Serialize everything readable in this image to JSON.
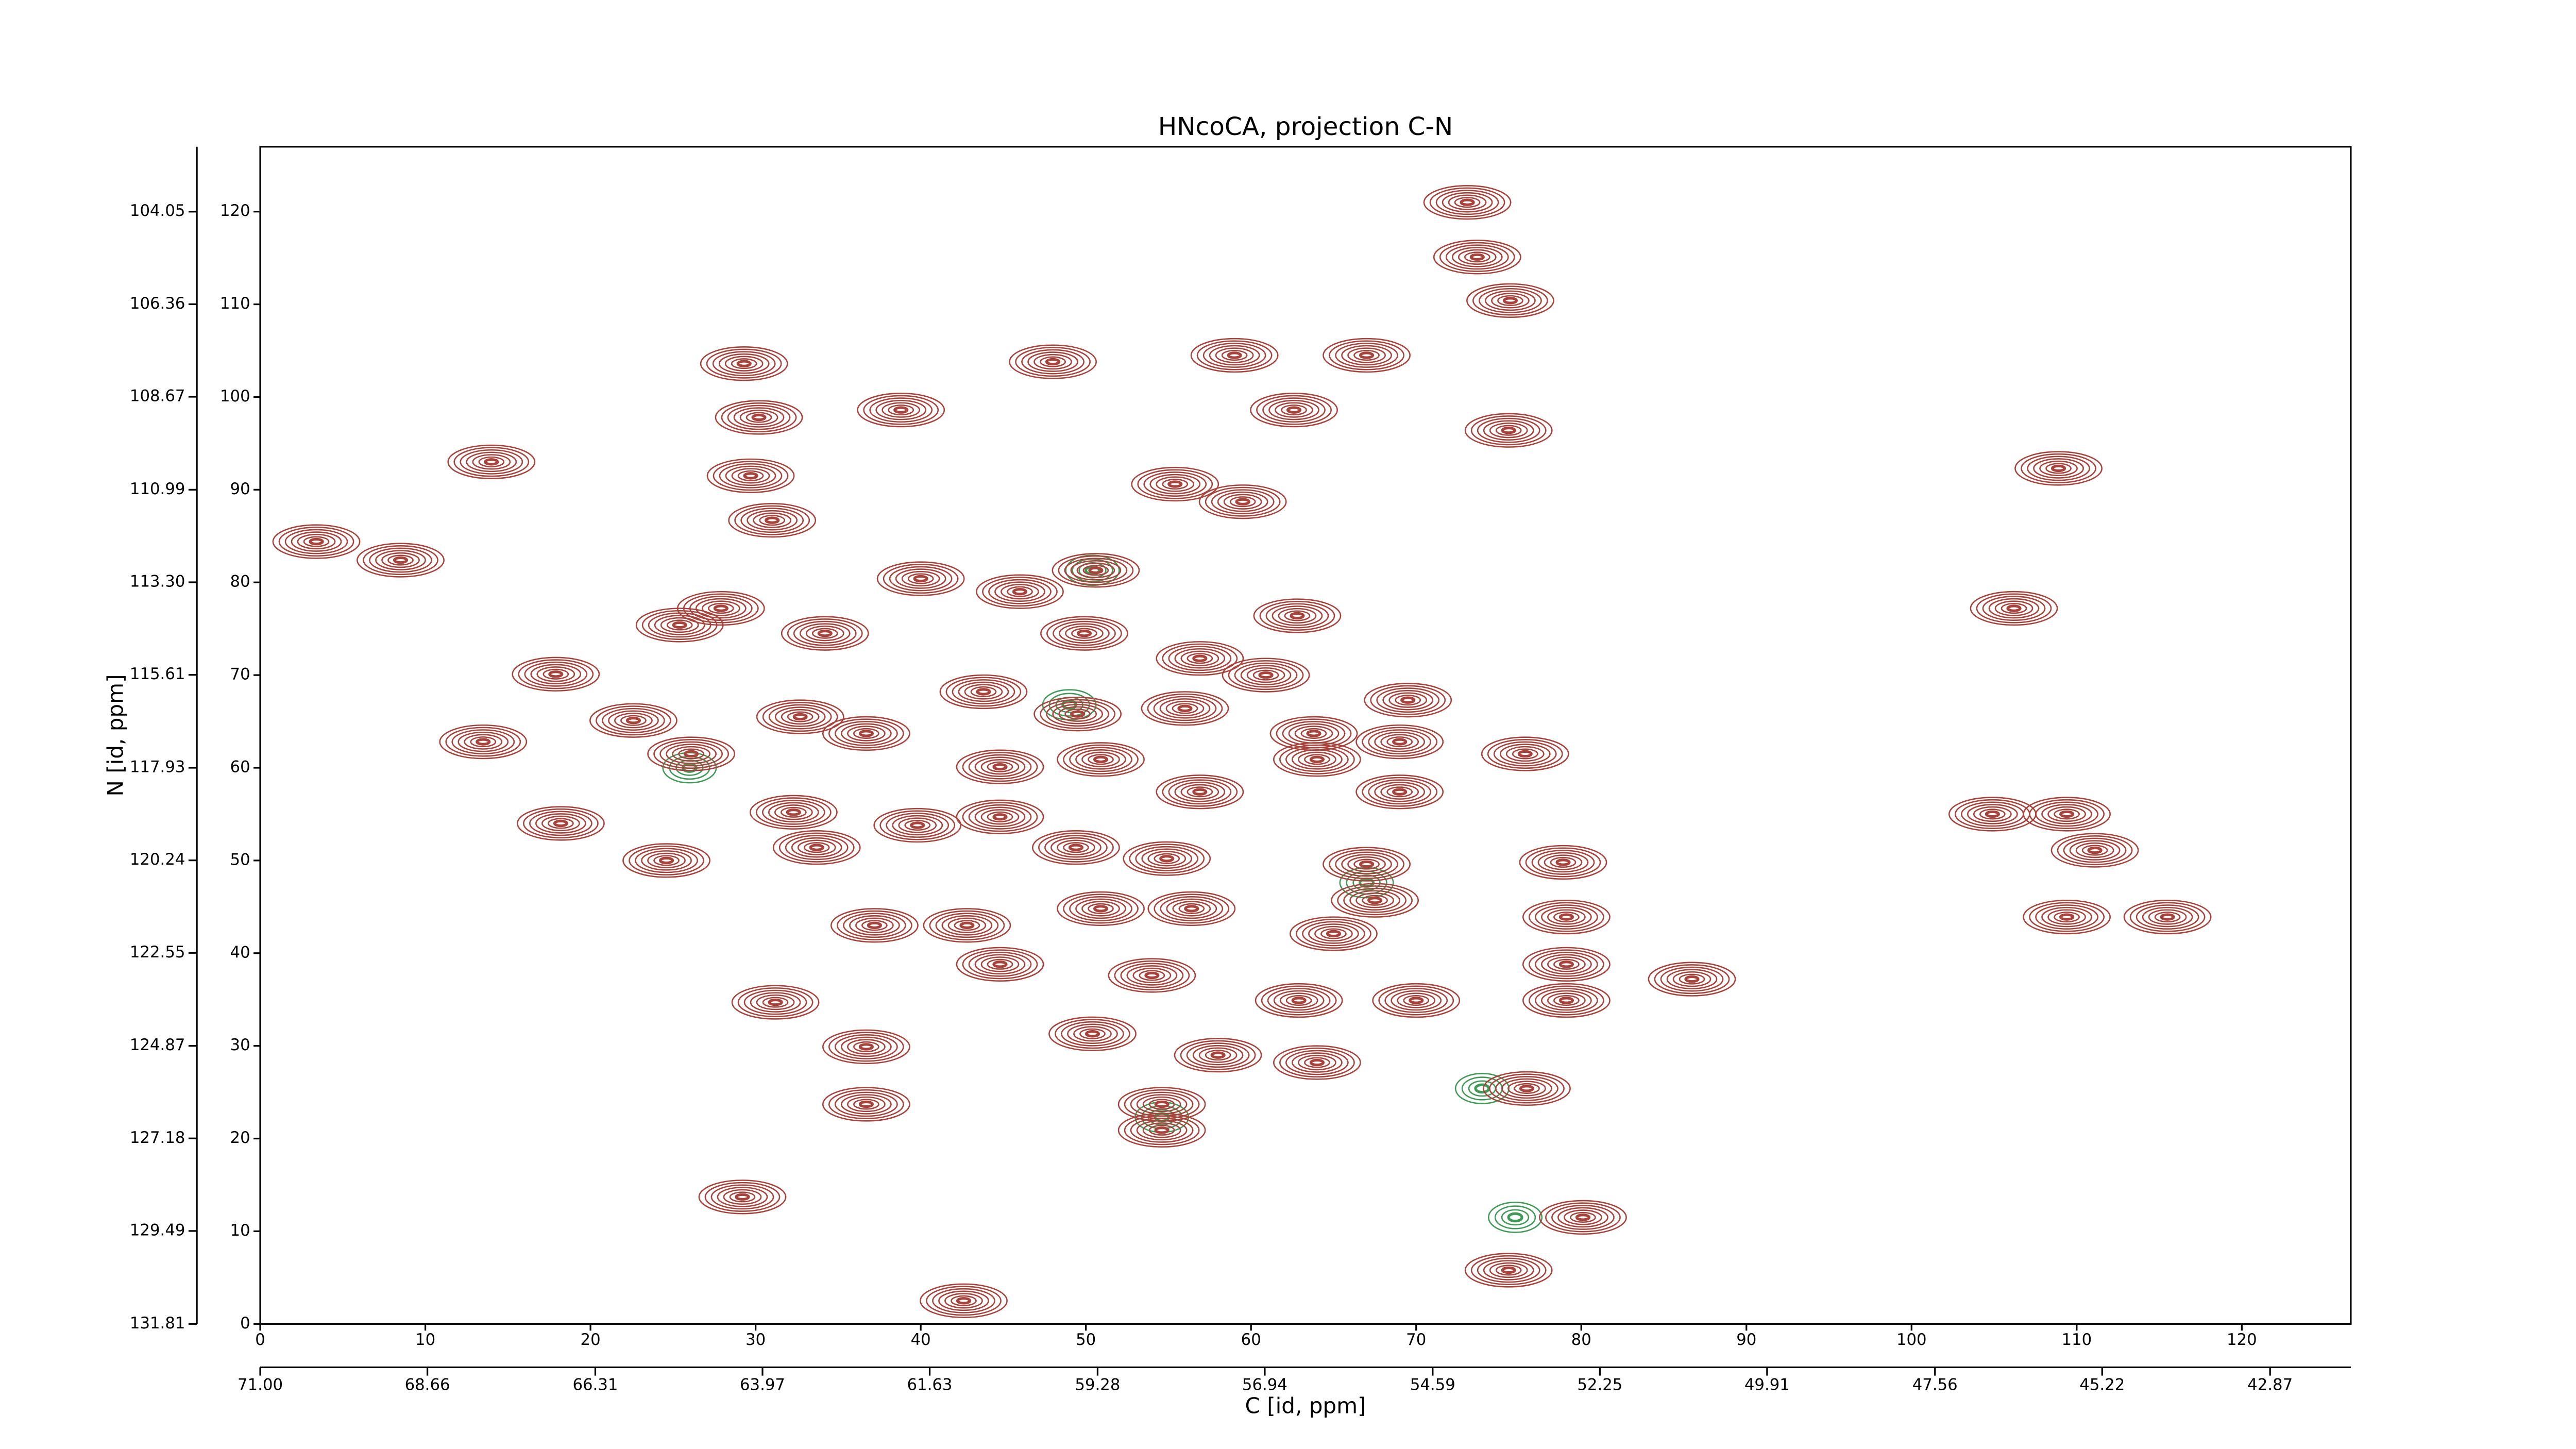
{
  "chart_data": {
    "type": "contour",
    "title": "HNcoCA, projection C-N",
    "xlabel": "C [id, ppm]",
    "ylabel": "N [id, ppm]",
    "xlim": [
      0,
      126.6
    ],
    "ylim": [
      0,
      127
    ],
    "xticks": [
      0,
      10,
      20,
      30,
      40,
      50,
      60,
      70,
      80,
      90,
      100,
      110,
      120
    ],
    "yticks": [
      0,
      10,
      20,
      30,
      40,
      50,
      60,
      70,
      80,
      90,
      100,
      110,
      120
    ],
    "x2lim": [
      71,
      41.74
    ],
    "x2ticks": [
      {
        "value": 71,
        "label": "71.00"
      },
      68.66,
      66.31,
      63.97,
      61.63,
      59.28,
      56.94,
      54.59,
      52.25,
      49.91,
      47.56,
      45.22,
      42.87
    ],
    "y2lim": [
      131.81,
      102.43
    ],
    "y2ticks": [
      104.05,
      106.36,
      108.67,
      110.99,
      113.3,
      115.61,
      117.93,
      120.24,
      122.55,
      124.87,
      127.18,
      129.49,
      131.81
    ],
    "y2tick_labels": [
      "104.05",
      "106.36",
      "108.67",
      "110.99",
      "113.30",
      "115.61",
      "117.93",
      "120.24",
      "122.55",
      "124.87",
      "127.18",
      "129.49",
      "131.81"
    ],
    "color": "#a8423a",
    "negative_color": "#3f9a57",
    "peaks": {
      "x": [
        73.1,
        73.7,
        75.7,
        29.3,
        48.0,
        59.0,
        67.0,
        38.8,
        62.6,
        75.6,
        30.2,
        14.0,
        29.7,
        31.0,
        108.9,
        55.4,
        59.5,
        3.4,
        8.5,
        40.0,
        50.6,
        46.0,
        27.9,
        25.4,
        34.2,
        49.9,
        62.8,
        106.2,
        56.9,
        17.9,
        60.9,
        32.7,
        36.7,
        43.8,
        49.5,
        56.0,
        69.5,
        22.6,
        13.5,
        26.1,
        63.8,
        69.0,
        76.6,
        44.8,
        50.9,
        56.9,
        69.0,
        64.0,
        32.3,
        44.8,
        18.2,
        33.7,
        39.8,
        49.4,
        54.9,
        67.0,
        78.9,
        104.9,
        109.4,
        111.1,
        24.6,
        50.9,
        56.4,
        67.5,
        79.1,
        109.4,
        115.5,
        42.8,
        37.2,
        65.0,
        79.1,
        44.8,
        86.7,
        54.0,
        62.9,
        70.0,
        79.1,
        31.2,
        36.7,
        50.4,
        58.0,
        64.0,
        76.7,
        54.6,
        54.6,
        36.7,
        29.2,
        80.1,
        75.6,
        42.6
      ],
      "y": [
        121.0,
        115.1,
        110.4,
        103.6,
        103.8,
        104.5,
        104.5,
        98.6,
        98.6,
        96.4,
        97.8,
        93.0,
        91.5,
        86.7,
        92.3,
        90.6,
        88.7,
        84.4,
        82.4,
        80.4,
        81.3,
        79.0,
        77.2,
        75.4,
        74.5,
        74.5,
        76.4,
        77.2,
        71.8,
        70.1,
        70.0,
        65.5,
        63.7,
        68.2,
        65.8,
        66.4,
        67.3,
        65.1,
        62.8,
        61.5,
        63.7,
        62.8,
        61.5,
        60.1,
        60.9,
        57.4,
        57.4,
        60.9,
        55.2,
        54.7,
        54.0,
        51.4,
        53.8,
        51.4,
        50.2,
        49.6,
        49.8,
        55.0,
        55.0,
        51.1,
        50.0,
        44.8,
        44.8,
        45.7,
        43.9,
        43.9,
        43.9,
        43.0,
        43.0,
        42.1,
        38.8,
        38.8,
        37.2,
        37.6,
        34.9,
        34.9,
        34.9,
        34.7,
        29.9,
        31.3,
        29.0,
        28.2,
        25.4,
        23.7,
        20.9,
        23.7,
        13.7,
        11.5,
        5.8,
        2.5
      ]
    },
    "negative_peaks": {
      "x": [
        54.6,
        50.4,
        67.0,
        76.0,
        74.0,
        49.0,
        26.0
      ],
      "y": [
        22.3,
        81.3,
        47.6,
        11.5,
        25.4,
        66.8,
        60.0
      ]
    }
  }
}
